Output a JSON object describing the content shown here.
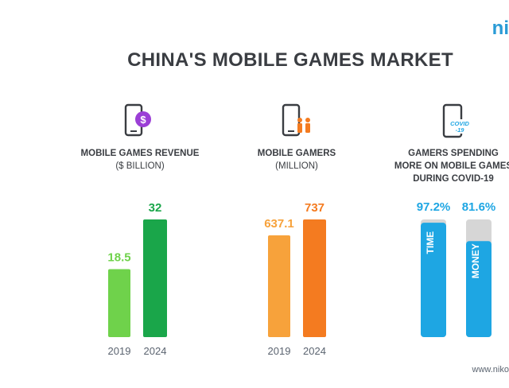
{
  "brand": "ni",
  "title": "CHINA'S MOBILE GAMES MARKET",
  "footer_url": "www.niko",
  "sections": {
    "revenue": {
      "label": "MOBILE GAMES REVENUE",
      "sub": "($ BILLION)",
      "icon": "phone-dollar-icon"
    },
    "gamers": {
      "label": "MOBILE GAMERS",
      "sub": "(MILLION)",
      "icon": "phone-people-icon"
    },
    "covid": {
      "label_lines": [
        "GAMERS SPENDING",
        "MORE ON MOBILE GAMES",
        "DURING COVID-19"
      ],
      "icon": "phone-covid-icon",
      "icon_text_1": "COVID",
      "icon_text_2": "-19"
    }
  },
  "colors": {
    "revenue_2019": "#6fd24b",
    "revenue_2024": "#1aa64a",
    "gamers_2019": "#f7a23b",
    "gamers_2024": "#f47b20",
    "covid_bar": "#1ea6e3",
    "covid_track": "#d6d6d6",
    "purple_badge": "#9b3fd6"
  },
  "chart_data": [
    {
      "type": "bar",
      "title": "MOBILE GAMES REVENUE",
      "ylabel": "($ BILLION)",
      "categories": [
        "2019",
        "2024"
      ],
      "values": [
        18.5,
        32
      ],
      "value_labels": [
        "18.5",
        "32"
      ]
    },
    {
      "type": "bar",
      "title": "MOBILE GAMERS",
      "ylabel": "(MILLION)",
      "categories": [
        "2019",
        "2024"
      ],
      "values": [
        637.1,
        737
      ],
      "value_labels": [
        "637.1",
        "737"
      ]
    },
    {
      "type": "bar",
      "title": "GAMERS SPENDING MORE ON MOBILE GAMES DURING COVID-19",
      "categories": [
        "TIME",
        "MONEY"
      ],
      "values": [
        97.2,
        81.6
      ],
      "value_labels": [
        "97.2%",
        "81.6%"
      ],
      "ylim": [
        0,
        100
      ]
    }
  ]
}
